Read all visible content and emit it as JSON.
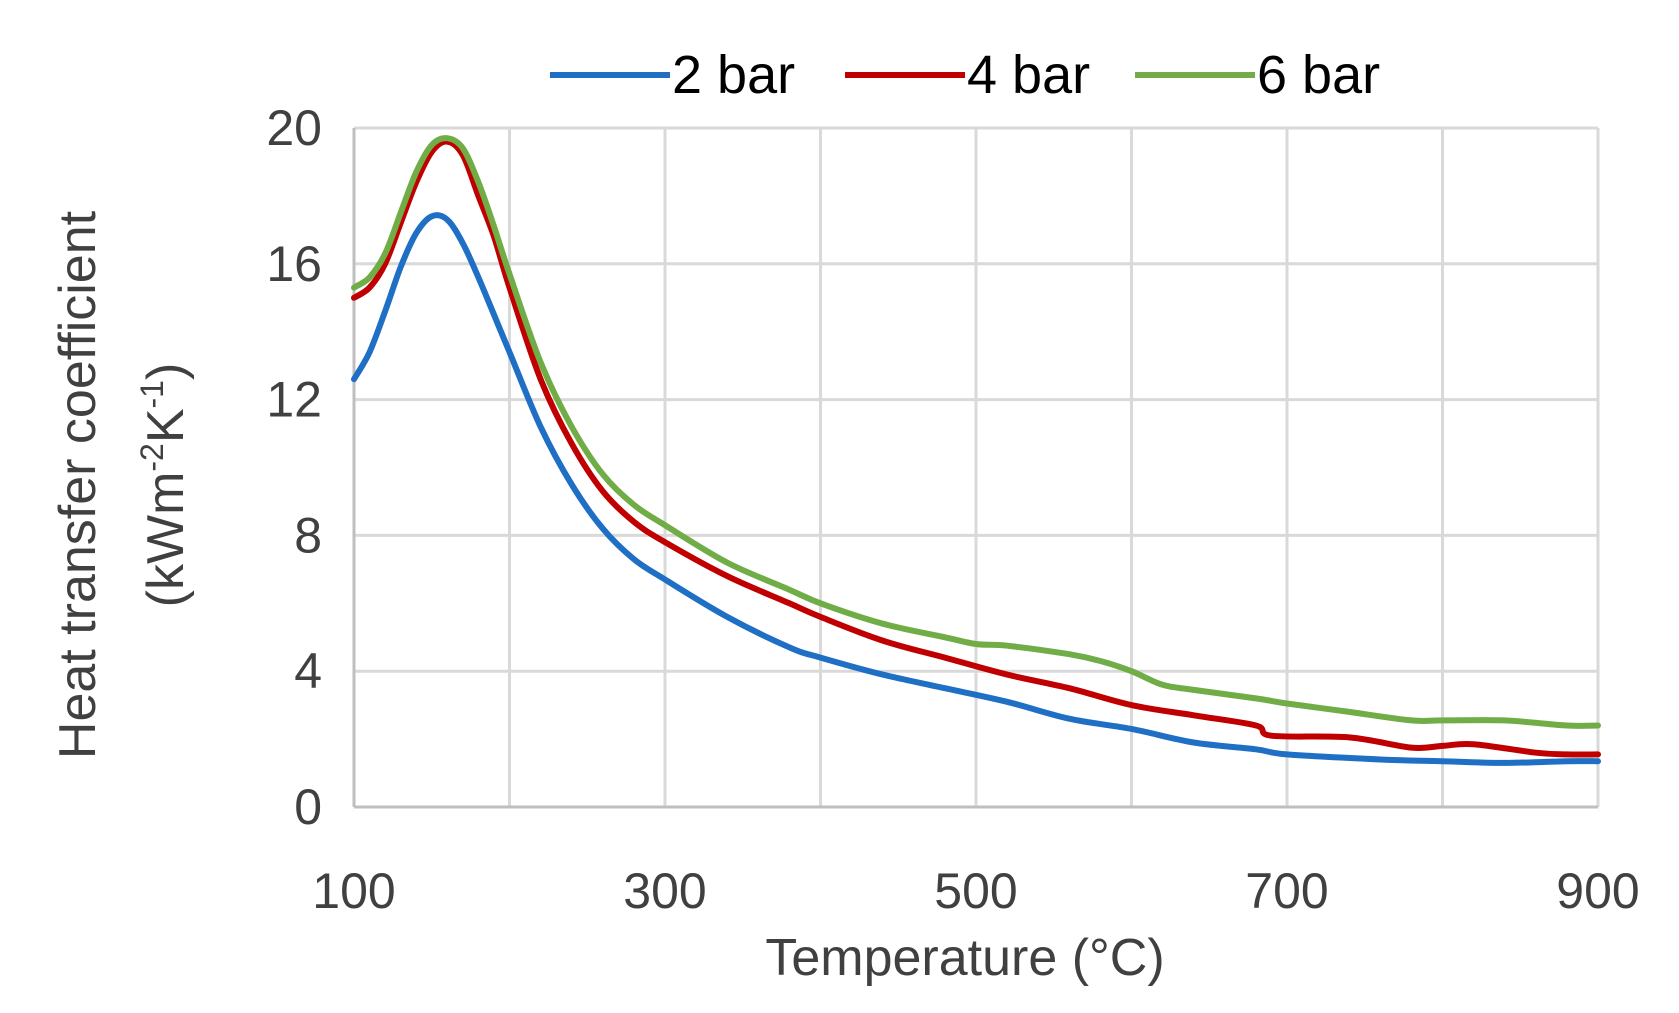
{
  "chart_data": {
    "type": "line",
    "title": "",
    "xlabel": "Temperature (°C)",
    "ylabel_line1": "Heat transfer coefficient",
    "ylabel_line2_prefix": "(kWm",
    "ylabel_sup1": "-2",
    "ylabel_mid": "K",
    "ylabel_sup2": "-1",
    "ylabel_suffix": ")",
    "xlim": [
      100,
      900
    ],
    "ylim": [
      0,
      20
    ],
    "xticks": [
      100,
      300,
      500,
      700,
      900
    ],
    "yticks": [
      0,
      4,
      8,
      12,
      16,
      20
    ],
    "grid": true,
    "legend_position": "top",
    "series": [
      {
        "name": "2 bar",
        "color": "#1f6fc5",
        "x": [
          100,
          110,
          120,
          130,
          140,
          150,
          160,
          170,
          180,
          190,
          200,
          220,
          240,
          260,
          280,
          300,
          340,
          380,
          400,
          440,
          480,
          520,
          560,
          600,
          640,
          680,
          700,
          760,
          800,
          840,
          880,
          900
        ],
        "y": [
          12.6,
          13.4,
          14.6,
          15.9,
          16.9,
          17.4,
          17.3,
          16.6,
          15.6,
          14.5,
          13.4,
          11.2,
          9.5,
          8.2,
          7.3,
          6.7,
          5.6,
          4.7,
          4.4,
          3.9,
          3.5,
          3.1,
          2.6,
          2.3,
          1.9,
          1.7,
          1.55,
          1.4,
          1.35,
          1.3,
          1.35,
          1.35
        ]
      },
      {
        "name": "4 bar",
        "color": "#c00000",
        "x": [
          100,
          110,
          120,
          130,
          140,
          150,
          160,
          170,
          180,
          190,
          200,
          220,
          240,
          260,
          280,
          300,
          340,
          380,
          400,
          440,
          480,
          520,
          560,
          600,
          640,
          680,
          690,
          740,
          780,
          800,
          820,
          860,
          880,
          900
        ],
        "y": [
          15.0,
          15.3,
          16.0,
          17.2,
          18.4,
          19.3,
          19.6,
          19.2,
          18.0,
          16.8,
          15.3,
          12.6,
          10.7,
          9.3,
          8.4,
          7.8,
          6.8,
          6.0,
          5.6,
          4.9,
          4.4,
          3.9,
          3.5,
          3.0,
          2.7,
          2.4,
          2.1,
          2.05,
          1.75,
          1.8,
          1.85,
          1.6,
          1.55,
          1.55
        ]
      },
      {
        "name": "6 bar",
        "color": "#70ad47",
        "x": [
          100,
          110,
          120,
          130,
          140,
          150,
          160,
          170,
          180,
          190,
          200,
          220,
          240,
          260,
          280,
          300,
          340,
          380,
          400,
          440,
          480,
          500,
          520,
          560,
          580,
          600,
          620,
          640,
          680,
          700,
          740,
          780,
          800,
          840,
          880,
          900
        ],
        "y": [
          15.3,
          15.6,
          16.3,
          17.5,
          18.7,
          19.5,
          19.7,
          19.4,
          18.4,
          17.1,
          15.7,
          13.1,
          11.2,
          9.8,
          8.9,
          8.3,
          7.2,
          6.4,
          6.0,
          5.4,
          5.0,
          4.8,
          4.75,
          4.5,
          4.3,
          4.0,
          3.6,
          3.45,
          3.2,
          3.05,
          2.8,
          2.55,
          2.55,
          2.55,
          2.4,
          2.4
        ]
      }
    ]
  }
}
